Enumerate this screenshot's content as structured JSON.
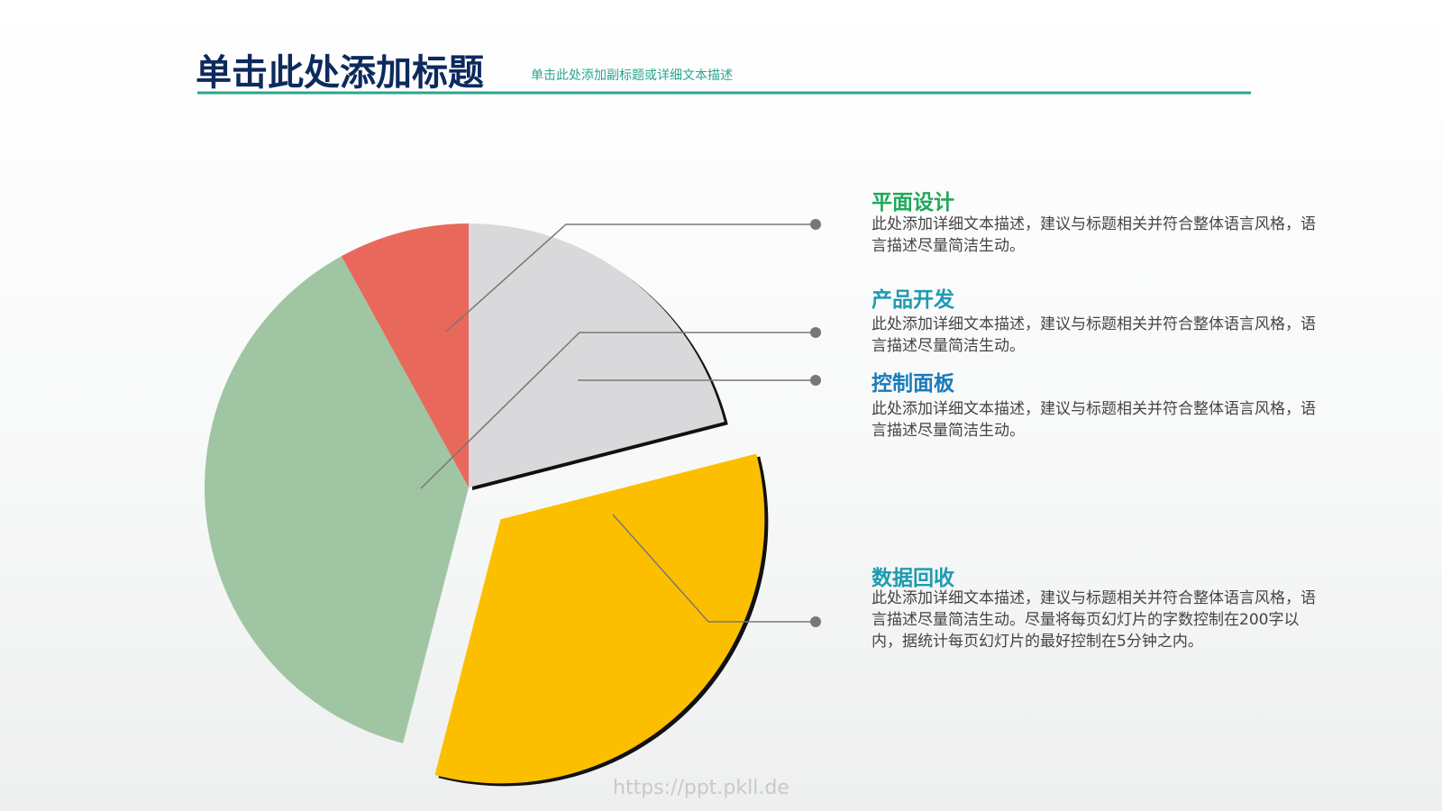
{
  "header": {
    "title": "单击此处添加标题",
    "subtitle": "单击此处添加副标题或详细文本描述"
  },
  "chart_data": {
    "type": "pie",
    "categories": [
      "平面设计",
      "产品开发",
      "控制面板",
      "数据回收"
    ],
    "values": [
      8,
      38,
      21,
      33
    ],
    "colors": [
      "#e8695c",
      "#a0c5a3",
      "#d9d8da",
      "#fcbf00"
    ],
    "descriptions": [
      "此处添加详细文本描述，建议与标题相关并符合整体语言风格，语言描述尽量简洁生动。",
      "此处添加详细文本描述，建议与标题相关并符合整体语言风格，语言描述尽量简洁生动。",
      "此处添加详细文本描述，建议与标题相关并符合整体语言风格，语言描述尽量简洁生动。",
      "此处添加详细文本描述，建议与标题相关并符合整体语言风格，语言描述尽量简洁生动。尽量将每页幻灯片的字数控制在200字以内，据统计每页幻灯片的最好控制在5分钟之内。"
    ]
  },
  "watermark": "https://ppt.pkll.de"
}
